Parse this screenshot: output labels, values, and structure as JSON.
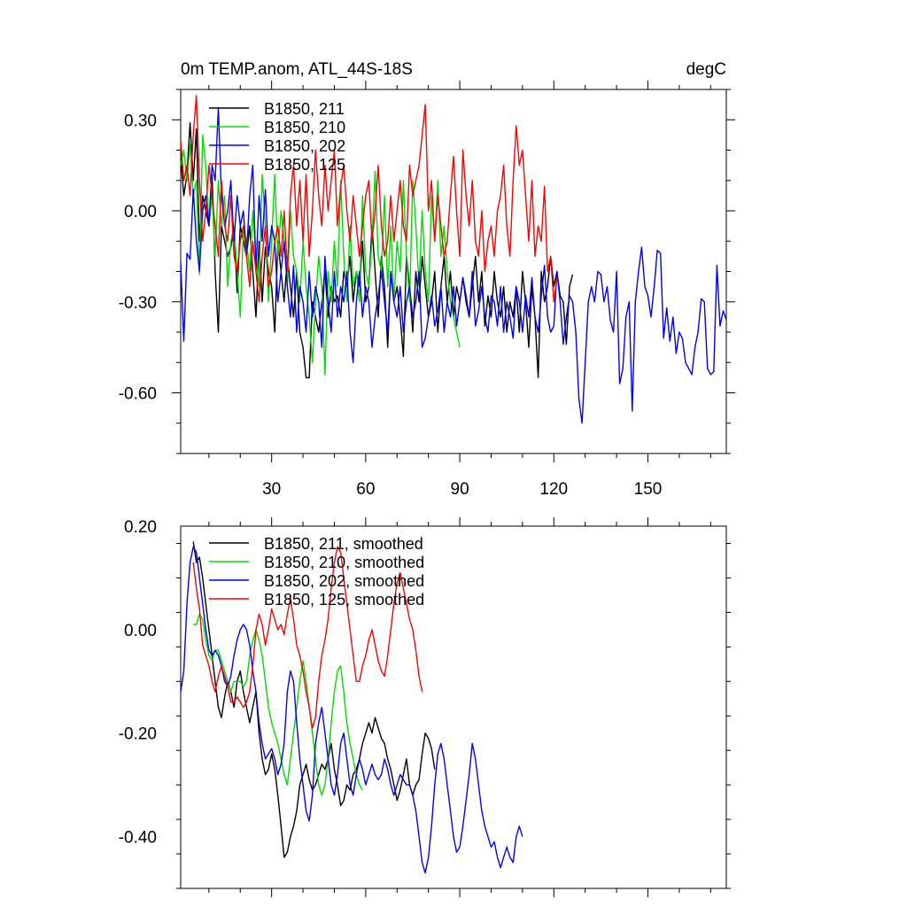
{
  "chart_data": [
    {
      "type": "line",
      "title": "0m TEMP.anom, ATL_44S-18S",
      "units": "degC",
      "xlim": [
        1,
        175
      ],
      "ylim": [
        -0.8,
        0.4
      ],
      "x_ticks": [
        30,
        60,
        90,
        120,
        150
      ],
      "x_tick_labels": [
        "30",
        "60",
        "90",
        "120",
        "150"
      ],
      "y_ticks": [
        0.3,
        0.0,
        -0.3,
        -0.6
      ],
      "y_tick_labels": [
        "0.30",
        "0.00",
        "-0.30",
        "-0.60"
      ],
      "series": [
        {
          "name": "B1850, 211",
          "color": "#000000",
          "x_start": 1,
          "values": [
            0.18,
            0.05,
            0.12,
            0.29,
            0.1,
            0.27,
            -0.1,
            0.05,
            0.0,
            -0.05,
            0.12,
            -0.2,
            -0.4,
            -0.05,
            -0.1,
            -0.15,
            -0.12,
            -0.05,
            -0.27,
            -0.05,
            -0.1,
            -0.15,
            -0.05,
            -0.2,
            -0.35,
            -0.1,
            -0.3,
            -0.12,
            -0.2,
            -0.25,
            -0.4,
            -0.1,
            -0.2,
            -0.3,
            -0.15,
            -0.25,
            -0.35,
            -0.2,
            -0.4,
            -0.45,
            -0.55,
            -0.55,
            -0.3,
            -0.35,
            -0.4,
            -0.3,
            -0.2,
            -0.35,
            -0.25,
            -0.3,
            -0.28,
            -0.35,
            -0.2,
            -0.25,
            -0.15,
            -0.3,
            -0.2,
            -0.25,
            -0.1,
            -0.3,
            -0.25,
            -0.05,
            -0.2,
            -0.35,
            -0.15,
            -0.25,
            -0.45,
            -0.2,
            -0.3,
            -0.25,
            -0.35,
            -0.48,
            -0.15,
            -0.25,
            -0.4,
            -0.2,
            -0.3,
            -0.15,
            -0.25,
            -0.35,
            -0.3,
            -0.2,
            -0.4,
            -0.25,
            -0.15,
            -0.3,
            -0.2,
            -0.35,
            -0.25,
            -0.3,
            -0.22,
            -0.3,
            -0.35,
            -0.25,
            -0.15,
            -0.3,
            -0.2,
            -0.38,
            -0.28,
            -0.35,
            -0.2,
            -0.3,
            -0.35,
            -0.25,
            -0.4,
            -0.3,
            -0.35,
            -0.25,
            -0.4,
            -0.2,
            -0.3,
            -0.45,
            -0.25,
            -0.35,
            -0.55,
            -0.2,
            -0.3,
            -0.25,
            -0.15,
            -0.25,
            -0.2,
            -0.28,
            -0.3,
            -0.44,
            -0.25,
            -0.21
          ]
        },
        {
          "name": "B1850, 210",
          "color": "#00dd00",
          "x_start": 1,
          "values": [
            0.15,
            0.2,
            0.1,
            0.22,
            0.05,
            0.1,
            -0.21,
            0.25,
            0.15,
            -0.05,
            0.05,
            -0.15,
            0.1,
            -0.05,
            0.05,
            -0.25,
            -0.1,
            -0.05,
            -0.2,
            -0.35,
            -0.05,
            -0.1,
            -0.2,
            0.0,
            -0.15,
            -0.25,
            0.12,
            -0.05,
            -0.3,
            -0.1,
            0.12,
            -0.15,
            0.0,
            -0.1,
            -0.25,
            0.0,
            -0.15,
            -0.2,
            -0.3,
            -0.1,
            -0.25,
            -0.35,
            -0.5,
            -0.3,
            -0.15,
            -0.25,
            -0.54,
            -0.2,
            -0.3,
            -0.1,
            -0.25,
            0.1,
            -0.15,
            -0.3,
            -0.05,
            -0.25,
            -0.2,
            -0.3,
            0.05,
            -0.2,
            -0.25,
            -0.1,
            0.13,
            -0.15,
            -0.2,
            0.05,
            -0.25,
            -0.05,
            -0.3,
            -0.1,
            -0.2,
            0.1,
            -0.15,
            -0.3,
            0.1,
            -0.05,
            -0.25,
            0.0,
            -0.2,
            -0.3,
            0.05,
            -0.1,
            0.1,
            -0.15,
            -0.05,
            -0.2,
            -0.3,
            -0.35,
            -0.4,
            -0.45
          ]
        },
        {
          "name": "B1850, 202",
          "color": "#0000ff",
          "x_start": 1,
          "values": [
            -0.17,
            -0.43,
            -0.14,
            -0.16,
            0.07,
            -0.1,
            -0.2,
            0.0,
            0.05,
            -0.05,
            0.15,
            0.1,
            0.34,
            0.05,
            -0.05,
            0.0,
            0.1,
            -0.1,
            0.05,
            -0.05,
            0.0,
            -0.15,
            0.05,
            0.15,
            -0.2,
            0.05,
            -0.1,
            0.07,
            -0.15,
            -0.05,
            -0.1,
            -0.3,
            -0.2,
            -0.1,
            -0.25,
            -0.35,
            -0.18,
            -0.4,
            -0.25,
            -0.3,
            -0.4,
            -0.2,
            -0.35,
            -0.25,
            -0.3,
            -0.45,
            -0.15,
            -0.3,
            -0.4,
            -0.2,
            -0.35,
            -0.25,
            -0.3,
            -0.2,
            -0.4,
            -0.5,
            -0.3,
            -0.2,
            -0.35,
            -0.25,
            -0.3,
            -0.45,
            -0.35,
            -0.28,
            -0.2,
            -0.3,
            -0.4,
            -0.2,
            -0.3,
            -0.35,
            -0.25,
            -0.4,
            -0.3,
            -0.25,
            -0.35,
            -0.3,
            -0.2,
            -0.45,
            -0.42,
            -0.35,
            -0.28,
            -0.38,
            -0.33,
            -0.25,
            -0.4,
            -0.3,
            -0.35,
            -0.25,
            -0.38,
            -0.3,
            -0.22,
            -0.28,
            -0.35,
            -0.2,
            -0.38,
            -0.33,
            -0.25,
            -0.35,
            -0.4,
            -0.28,
            -0.3,
            -0.38,
            -0.25,
            -0.4,
            -0.3,
            -0.35,
            -0.42,
            -0.25,
            -0.3,
            -0.4,
            -0.28,
            -0.35,
            -0.22,
            -0.35,
            -0.4,
            -0.28,
            -0.18,
            -0.35,
            -0.4,
            -0.38,
            -0.2,
            -0.3,
            -0.44,
            -0.35,
            -0.28,
            -0.3,
            -0.4,
            -0.62,
            -0.7,
            -0.5,
            -0.3,
            -0.25,
            -0.3,
            -0.2,
            -0.21,
            -0.3,
            -0.25,
            -0.36,
            -0.4,
            -0.2,
            -0.57,
            -0.52,
            -0.35,
            -0.3,
            -0.66,
            -0.3,
            -0.2,
            -0.12,
            -0.25,
            -0.28,
            -0.35,
            -0.25,
            -0.13,
            -0.14,
            -0.42,
            -0.32,
            -0.43,
            -0.35,
            -0.47,
            -0.4,
            -0.42,
            -0.5,
            -0.52,
            -0.54,
            -0.45,
            -0.4,
            -0.29,
            -0.3,
            -0.52,
            -0.54,
            -0.53,
            -0.18,
            -0.38,
            -0.33,
            -0.36
          ]
        },
        {
          "name": "B1850, 125",
          "color": "#ff0000",
          "x_start": 1,
          "values": [
            0.23,
            0.1,
            0.15,
            0.05,
            0.25,
            0.38,
            0.1,
            -0.1,
            0.0,
            0.15,
            0.05,
            -0.05,
            -0.15,
            0.1,
            -0.05,
            -0.1,
            0.05,
            -0.15,
            -0.2,
            -0.1,
            -0.05,
            -0.15,
            -0.25,
            -0.1,
            -0.2,
            -0.3,
            -0.15,
            -0.05,
            -0.25,
            -0.2,
            -0.1,
            -0.05,
            -0.15,
            0.0,
            -0.2,
            0.05,
            0.15,
            -0.05,
            0.1,
            -0.1,
            0.12,
            -0.15,
            0.0,
            0.2,
            0.05,
            -0.05,
            0.15,
            0.0,
            0.1,
            0.2,
            -0.05,
            0.08,
            0.15,
            0.0,
            -0.1,
            0.05,
            -0.05,
            -0.15,
            -0.05,
            0.05,
            0.1,
            -0.1,
            0.0,
            0.15,
            -0.05,
            -0.15,
            -0.1,
            0.05,
            -0.1,
            0.0,
            0.1,
            -0.05,
            -0.1,
            0.15,
            0.05,
            0.1,
            0.15,
            0.25,
            0.35,
            0.0,
            0.1,
            -0.1,
            0.05,
            -0.05,
            -0.15,
            -0.1,
            0.05,
            0.18,
            0.0,
            -0.15,
            0.2,
            0.05,
            -0.05,
            0.1,
            -0.1,
            -0.15,
            0.0,
            -0.2,
            -0.1,
            -0.05,
            -0.15,
            0.0,
            0.05,
            0.15,
            -0.05,
            -0.15,
            0.1,
            0.28,
            0.15,
            0.2,
            0.05,
            -0.1,
            0.1,
            -0.15,
            -0.05,
            -0.1,
            0.08,
            -0.2,
            -0.15,
            -0.3,
            -0.22
          ]
        }
      ]
    },
    {
      "type": "line",
      "xlim": [
        1,
        175
      ],
      "ylim": [
        -0.5,
        0.2
      ],
      "y_ticks": [
        0.2,
        0.0,
        -0.2,
        -0.4
      ],
      "y_tick_labels": [
        "0.20",
        "0.00",
        "-0.20",
        "-0.40"
      ],
      "series": [
        {
          "name": "B1850, 211, smoothed",
          "color": "#000000",
          "x_start": 5,
          "values": [
            0.17,
            0.13,
            0.14,
            0.1,
            0.05,
            0.0,
            -0.05,
            -0.1,
            -0.15,
            -0.17,
            -0.13,
            -0.1,
            -0.12,
            -0.15,
            -0.1,
            -0.08,
            -0.12,
            -0.15,
            -0.18,
            -0.15,
            -0.12,
            -0.2,
            -0.25,
            -0.28,
            -0.27,
            -0.24,
            -0.27,
            -0.32,
            -0.38,
            -0.44,
            -0.43,
            -0.4,
            -0.38,
            -0.35,
            -0.3,
            -0.28,
            -0.26,
            -0.29,
            -0.31,
            -0.3,
            -0.28,
            -0.26,
            -0.27,
            -0.25,
            -0.22,
            -0.27,
            -0.3,
            -0.34,
            -0.33,
            -0.3,
            -0.31,
            -0.28,
            -0.27,
            -0.25,
            -0.22,
            -0.2,
            -0.18,
            -0.2,
            -0.17,
            -0.19,
            -0.21,
            -0.22,
            -0.25,
            -0.27,
            -0.3,
            -0.33,
            -0.31,
            -0.28,
            -0.25,
            -0.3,
            -0.32,
            -0.3,
            -0.29,
            -0.24,
            -0.2,
            -0.21,
            -0.23,
            -0.27
          ]
        },
        {
          "name": "B1850, 210, smoothed",
          "color": "#00dd00",
          "x_start": 5,
          "values": [
            0.01,
            0.01,
            0.03,
            0.02,
            -0.02,
            -0.05,
            -0.06,
            -0.04,
            -0.04,
            -0.06,
            -0.08,
            -0.1,
            -0.12,
            -0.1,
            -0.1,
            -0.1,
            -0.11,
            -0.1,
            -0.05,
            -0.02,
            0.0,
            -0.02,
            -0.05,
            -0.1,
            -0.15,
            -0.18,
            -0.2,
            -0.22,
            -0.25,
            -0.28,
            -0.3,
            -0.25,
            -0.2,
            -0.15,
            -0.1,
            -0.06,
            -0.1,
            -0.15,
            -0.2,
            -0.25,
            -0.3,
            -0.32,
            -0.3,
            -0.25,
            -0.18,
            -0.12,
            -0.08,
            -0.07,
            -0.12,
            -0.18,
            -0.22,
            -0.25,
            -0.28,
            -0.3,
            -0.31
          ]
        },
        {
          "name": "B1850, 202, smoothed",
          "color": "#0000ff",
          "x_start": 1,
          "values": [
            -0.12,
            -0.08,
            0.05,
            0.13,
            0.16,
            0.15,
            0.1,
            0.05,
            0.0,
            -0.04,
            -0.05,
            -0.04,
            -0.05,
            -0.07,
            -0.1,
            -0.11,
            -0.09,
            -0.05,
            -0.02,
            0.0,
            0.01,
            0.0,
            -0.03,
            -0.08,
            -0.12,
            -0.18,
            -0.22,
            -0.25,
            -0.24,
            -0.23,
            -0.25,
            -0.28,
            -0.26,
            -0.22,
            -0.12,
            -0.08,
            -0.1,
            -0.18,
            -0.25,
            -0.3,
            -0.35,
            -0.37,
            -0.32,
            -0.22,
            -0.18,
            -0.15,
            -0.2,
            -0.25,
            -0.3,
            -0.32,
            -0.28,
            -0.22,
            -0.2,
            -0.25,
            -0.3,
            -0.32,
            -0.28,
            -0.25,
            -0.27,
            -0.3,
            -0.28,
            -0.26,
            -0.28,
            -0.29,
            -0.28,
            -0.25,
            -0.27,
            -0.3,
            -0.32,
            -0.3,
            -0.28,
            -0.29,
            -0.3,
            -0.3,
            -0.32,
            -0.35,
            -0.4,
            -0.45,
            -0.47,
            -0.44,
            -0.38,
            -0.3,
            -0.24,
            -0.22,
            -0.25,
            -0.3,
            -0.35,
            -0.4,
            -0.43,
            -0.42,
            -0.38,
            -0.33,
            -0.28,
            -0.22,
            -0.25,
            -0.3,
            -0.35,
            -0.38,
            -0.4,
            -0.42,
            -0.41,
            -0.44,
            -0.46,
            -0.44,
            -0.42,
            -0.44,
            -0.45,
            -0.4,
            -0.38,
            -0.4
          ]
        },
        {
          "name": "B1850, 125, smoothed",
          "color": "#ff0000",
          "x_start": 5,
          "values": [
            0.13,
            0.08,
            0.04,
            -0.03,
            -0.05,
            -0.07,
            -0.1,
            -0.12,
            -0.09,
            -0.07,
            -0.09,
            -0.11,
            -0.14,
            -0.14,
            -0.13,
            -0.14,
            -0.15,
            -0.14,
            -0.12,
            -0.07,
            0.0,
            0.03,
            0.01,
            -0.03,
            0.0,
            0.04,
            0.02,
            0.0,
            0.01,
            -0.01,
            0.03,
            0.06,
            0.02,
            -0.03,
            -0.05,
            -0.08,
            -0.12,
            -0.15,
            -0.19,
            -0.17,
            -0.1,
            -0.05,
            -0.02,
            0.02,
            0.08,
            0.13,
            0.16,
            0.15,
            0.1,
            0.05,
            0.0,
            -0.05,
            -0.1,
            -0.1,
            -0.07,
            -0.05,
            -0.02,
            0.0,
            -0.03,
            -0.06,
            -0.08,
            -0.09,
            -0.05,
            0.0,
            0.05,
            0.09,
            0.11,
            0.08,
            0.05,
            0.02,
            0.0,
            -0.04,
            -0.09,
            -0.12
          ]
        }
      ]
    }
  ]
}
